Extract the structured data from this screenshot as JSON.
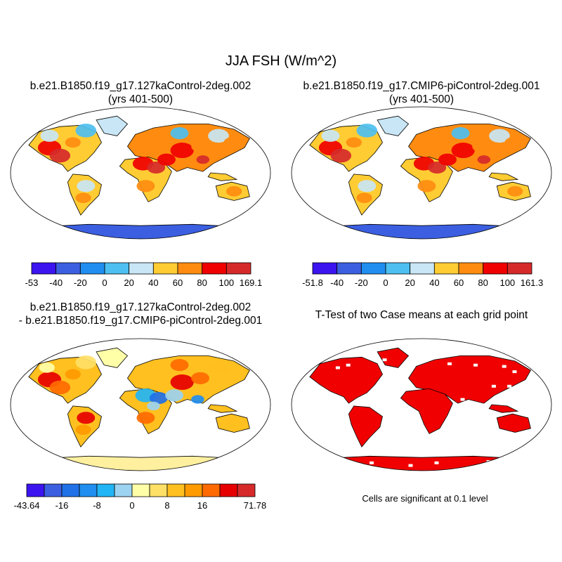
{
  "main_title": "JJA FSH (W/m^2)",
  "panels": [
    {
      "title_line1": "b.e21.B1850.f19_g17.127kaControl-2deg.002",
      "title_line2": "(yrs 401-500)"
    },
    {
      "title_line1": "b.e21.B1850.f19_g17.CMIP6-piControl-2deg.001",
      "title_line2": "(yrs 401-500)"
    },
    {
      "title_line1": "b.e21.B1850.f19_g17.127kaControl-2deg.002",
      "title_line2": "- b.e21.B1850.f19_g17.CMIP6-piControl-2deg.001"
    },
    {
      "title_line1": "T-Test of two Case means at each grid point",
      "title_line2": ""
    }
  ],
  "colorbars": [
    {
      "labels": [
        "-53",
        "-40",
        "-20",
        "0",
        "20",
        "40",
        "60",
        "80",
        "100",
        "169.1"
      ],
      "colors": [
        "#3b14f0",
        "#3b5fe0",
        "#1f8ef0",
        "#4dbff0",
        "#c8e6f5",
        "#ffcc33",
        "#ff8c10",
        "#f00000",
        "#d62a2a"
      ]
    },
    {
      "labels": [
        "-51.8",
        "-40",
        "-20",
        "0",
        "20",
        "40",
        "60",
        "80",
        "100",
        "161.3"
      ],
      "colors": [
        "#3b14f0",
        "#3b5fe0",
        "#1f8ef0",
        "#4dbff0",
        "#c8e6f5",
        "#ffcc33",
        "#ff8c10",
        "#f00000",
        "#d62a2a"
      ]
    },
    {
      "labels": [
        "-43.64",
        "",
        "-16",
        "",
        "-8",
        "",
        "0",
        "",
        "8",
        "",
        "16",
        "",
        "",
        "71.78"
      ],
      "colors": [
        "#3b14f0",
        "#3b5fe0",
        "#2070e8",
        "#1f8ef0",
        "#22b5f5",
        "#9bd3f0",
        "#ffffa8",
        "#ffe066",
        "#ffc020",
        "#ff9a00",
        "#ff6a00",
        "#e60000",
        "#d62a2a"
      ]
    }
  ],
  "significance_note": "Cells are significant at 0.1 level",
  "map_colors": {
    "ocean": "#ffffff",
    "coast": "#000000",
    "antarctica_abs": "#3b5fe0",
    "antarctica_diff": "#fff0a0",
    "significant": "#f00000"
  }
}
